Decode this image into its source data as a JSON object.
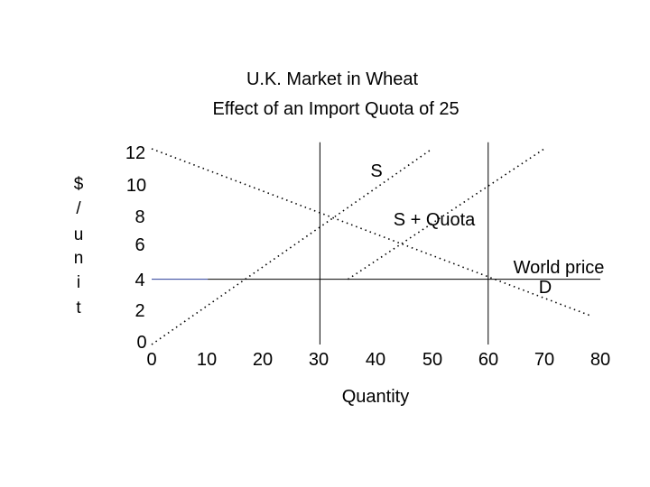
{
  "chart_data": {
    "type": "line",
    "title": "U.K. Market in Wheat",
    "subtitle": "Effect of an Import Quota of 25",
    "xlabel": "Quantity",
    "ylabel": [
      "$",
      "/",
      "u",
      "n",
      "i",
      "t"
    ],
    "xlim": [
      0,
      80
    ],
    "ylim": [
      0,
      12
    ],
    "xticks": [
      "0",
      "10",
      "20",
      "30",
      "40",
      "50",
      "60",
      "70",
      "80"
    ],
    "yticks": [
      "0",
      "2",
      "4",
      "6",
      "8",
      "10",
      "12"
    ],
    "grid": false,
    "series": [
      {
        "key": "supply",
        "x": [
          0,
          50
        ],
        "y": [
          0,
          12
        ],
        "style": "dotted",
        "color": "#000000"
      },
      {
        "key": "supply_quota",
        "x": [
          35,
          70
        ],
        "y": [
          4,
          12
        ],
        "style": "dotted",
        "color": "#000000"
      },
      {
        "key": "demand",
        "x": [
          0,
          78
        ],
        "y": [
          12,
          1.8
        ],
        "style": "dotted",
        "color": "#000000"
      },
      {
        "key": "world_price_seg1",
        "x": [
          0,
          10
        ],
        "y": [
          4,
          4
        ],
        "style": "solid",
        "color": "#2a3d9a"
      },
      {
        "key": "world_price_seg2",
        "x": [
          10,
          80
        ],
        "y": [
          4,
          4
        ],
        "style": "solid",
        "color": "#000000"
      }
    ],
    "vlines": [
      {
        "key": "quota_q1",
        "x": 30,
        "y": [
          0,
          12.4
        ]
      },
      {
        "key": "quota_q2",
        "x": 60,
        "y": [
          0,
          12.4
        ]
      }
    ],
    "annotations": [
      {
        "key": "s_label",
        "text": "S"
      },
      {
        "key": "s_quota_label",
        "text": "S + Quota"
      },
      {
        "key": "world_price_label",
        "text": "World price"
      },
      {
        "key": "d_label",
        "text": "D"
      }
    ]
  }
}
